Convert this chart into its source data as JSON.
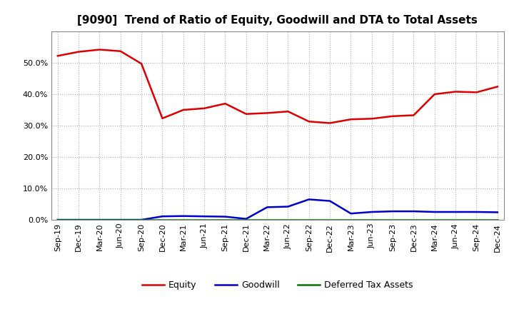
{
  "title": "[9090]  Trend of Ratio of Equity, Goodwill and DTA to Total Assets",
  "x_labels": [
    "Sep-19",
    "Dec-19",
    "Mar-20",
    "Jun-20",
    "Sep-20",
    "Dec-20",
    "Mar-21",
    "Jun-21",
    "Sep-21",
    "Dec-21",
    "Mar-22",
    "Jun-22",
    "Sep-22",
    "Dec-22",
    "Mar-23",
    "Jun-23",
    "Sep-23",
    "Dec-23",
    "Mar-24",
    "Jun-24",
    "Sep-24",
    "Dec-24"
  ],
  "equity": [
    0.522,
    0.535,
    0.542,
    0.537,
    0.497,
    0.323,
    0.35,
    0.355,
    0.37,
    0.337,
    0.34,
    0.345,
    0.313,
    0.308,
    0.32,
    0.322,
    0.33,
    0.333,
    0.4,
    0.408,
    0.406,
    0.424
  ],
  "goodwill": [
    0.0,
    0.0,
    0.0,
    0.0,
    0.0,
    0.011,
    0.012,
    0.011,
    0.01,
    0.003,
    0.04,
    0.042,
    0.065,
    0.06,
    0.02,
    0.025,
    0.027,
    0.027,
    0.025,
    0.025,
    0.025,
    0.024
  ],
  "dta": [
    0.001,
    0.001,
    0.001,
    0.001,
    0.001,
    0.001,
    0.001,
    0.001,
    0.001,
    0.001,
    0.001,
    0.001,
    0.001,
    0.001,
    0.001,
    0.001,
    0.001,
    0.001,
    0.001,
    0.001,
    0.001,
    0.001
  ],
  "equity_color": "#dd0000",
  "goodwill_color": "#0000cc",
  "dta_color": "#007700",
  "ylim": [
    0.0,
    0.6
  ],
  "yticks": [
    0.0,
    0.1,
    0.2,
    0.3,
    0.4,
    0.5
  ],
  "background_color": "#ffffff",
  "grid_color": "#aaaaaa",
  "title_fontsize": 11,
  "tick_fontsize": 8,
  "legend_fontsize": 9
}
